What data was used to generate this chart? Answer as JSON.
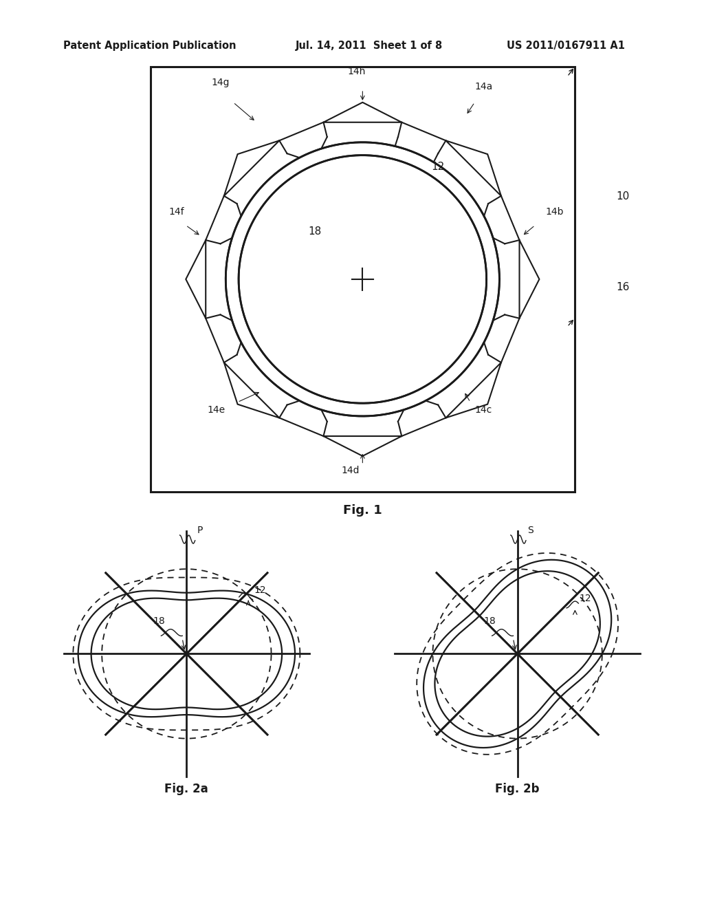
{
  "bg_color": "#ffffff",
  "line_color": "#1a1a1a",
  "header_left": "Patent Application Publication",
  "header_mid": "Jul. 14, 2011  Sheet 1 of 8",
  "header_right": "US 2011/0167911 A1",
  "fig1_label": "Fig. 1",
  "fig2a_label": "Fig. 2a",
  "fig2b_label": "Fig. 2b"
}
